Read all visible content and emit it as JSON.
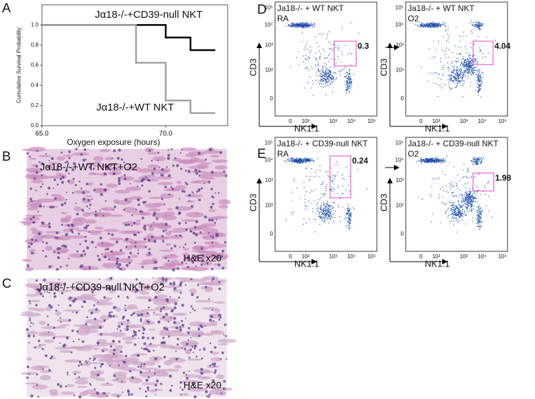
{
  "chart_data": {
    "type": "line",
    "panel": "A",
    "ylabel": "Cumulative Survival Probability",
    "xlabel": "Oxygen exposure (hours)",
    "xlim": [
      65,
      72.5
    ],
    "xticks": [
      {
        "value": 65,
        "label": "65.0"
      },
      {
        "value": 70,
        "label": "70.0"
      }
    ],
    "ylim": [
      0,
      1.2
    ],
    "yticks": [
      {
        "value": 0,
        "label": "0.0"
      },
      {
        "value": 0.2,
        "label": "0.2"
      },
      {
        "value": 0.4,
        "label": "0.4"
      },
      {
        "value": 0.6,
        "label": "0.6"
      },
      {
        "value": 0.8,
        "label": "0.8"
      },
      {
        "value": 1,
        "label": "1.0"
      }
    ],
    "series": [
      {
        "name": "Jα18-/-+CD39-null NKT",
        "color": "#000000",
        "x": [
          65,
          70,
          70,
          71,
          71,
          72
        ],
        "values": [
          1,
          1,
          0.875,
          0.875,
          0.75,
          0.75
        ]
      },
      {
        "name": "Jα18-/-+WT NKT",
        "color": "#a0a0a0",
        "x": [
          65,
          68.8,
          68.8,
          70,
          70,
          71,
          71,
          72
        ],
        "values": [
          1,
          1,
          0.625,
          0.625,
          0.25,
          0.25,
          0.125,
          0.125
        ]
      }
    ]
  },
  "histology": [
    {
      "panel": "B",
      "label": "Jα18-/-+WT NKT+O2",
      "stain": "H&E x20"
    },
    {
      "panel": "C",
      "label": "Jα18-/-+CD39-null NKT+O2",
      "stain": "H&E x20"
    }
  ],
  "flow_axes": {
    "x_label": "NK1.1",
    "y_label": "CD3",
    "x_ticks": [
      "0",
      "10²",
      "10³",
      "10⁴",
      "10⁵"
    ],
    "y_ticks": [
      "10⁵",
      "10⁴",
      "10³",
      "10²",
      "0"
    ]
  },
  "flow_rows": [
    {
      "panel": "D",
      "plots": [
        {
          "title": "Ja18-/- + WT NKT",
          "condition": "RA",
          "gate_value": 0.3
        },
        {
          "title": "Ja18-/- + WT NKT",
          "condition": "O2",
          "gate_value": 4.04
        }
      ]
    },
    {
      "panel": "E",
      "plots": [
        {
          "title": "Ja18-/- + CD39-null NKT",
          "condition": "RA",
          "gate_value": 0.24
        },
        {
          "title": "Ja18-/- + CD39-null NKT",
          "condition": "O2",
          "gate_value": 1.98
        }
      ]
    }
  ]
}
